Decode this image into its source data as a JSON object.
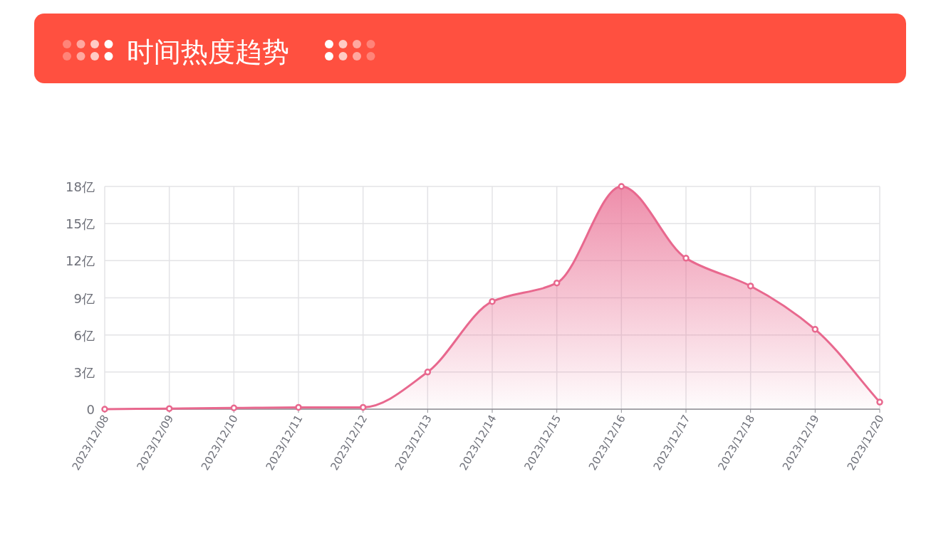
{
  "chart_data": {
    "type": "area",
    "title": "时间热度趋势",
    "categories": [
      "2023/12/08",
      "2023/12/09",
      "2023/12/10",
      "2023/12/11",
      "2023/12/12",
      "2023/12/13",
      "2023/12/14",
      "2023/12/15",
      "2023/12/16",
      "2023/12/17",
      "2023/12/18",
      "2023/12/19",
      "2023/12/20"
    ],
    "series": [
      {
        "color": "#e8688e",
        "values": [
          0,
          0.05,
          0.1,
          0.15,
          0.15,
          3.0,
          8.7,
          10.2,
          18,
          12.2,
          9.95,
          6.45,
          0.57
        ]
      }
    ],
    "ylim": [
      0,
      18
    ],
    "yticks": [
      {
        "value": 0,
        "label": "0"
      },
      {
        "value": 3,
        "label": "3亿"
      },
      {
        "value": 6,
        "label": "6亿"
      },
      {
        "value": 9,
        "label": "9亿"
      },
      {
        "value": 12,
        "label": "12亿"
      },
      {
        "value": 15,
        "label": "15亿"
      },
      {
        "value": 18,
        "label": "18亿"
      }
    ],
    "grid": true,
    "marker": "circle"
  }
}
